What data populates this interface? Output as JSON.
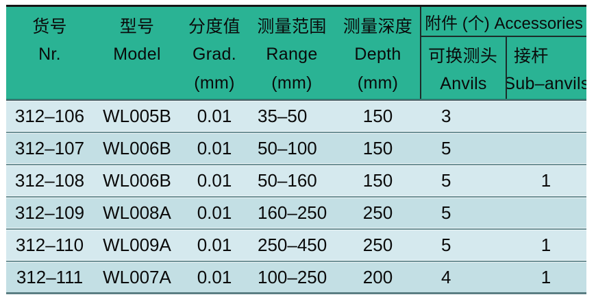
{
  "meta": {
    "description": "Catalog specification table for depth micrometers with Chinese/English bilingual headers"
  },
  "colors": {
    "header_bg": "#2ab394",
    "row_light": "#d5e9ee",
    "row_dark": "#c3dfe4",
    "separator": "#6e9196",
    "header_rule": "#1c2b29",
    "top_rule": "#151515",
    "bottom_rule": "#5b7e83",
    "text": "#0a0a0a"
  },
  "table": {
    "columns": [
      {
        "zh": "货号",
        "en": "Nr.",
        "unit": ""
      },
      {
        "zh": "型号",
        "en": "Model",
        "unit": ""
      },
      {
        "zh": "分度值",
        "en": "Grad.",
        "unit": "(mm)"
      },
      {
        "zh": "测量范围",
        "en": "Range",
        "unit": "(mm)"
      },
      {
        "zh": "测量深度",
        "en": "Depth",
        "unit": "(mm)"
      }
    ],
    "accessories_group": {
      "title": "附件 (个) Accessories",
      "sub_columns": [
        {
          "zh": "可换测头",
          "en": "Anvils"
        },
        {
          "zh": "接杆",
          "en": "Sub–anvils"
        }
      ]
    },
    "rows": [
      [
        "312–106",
        "WL005B",
        "0.01",
        "35–50",
        "150",
        "3",
        ""
      ],
      [
        "312–107",
        "WL006B",
        "0.01",
        "50–100",
        "150",
        "5",
        ""
      ],
      [
        "312–108",
        "WL006B",
        "0.01",
        "50–160",
        "150",
        "5",
        "1"
      ],
      [
        "312–109",
        "WL008A",
        "0.01",
        "160–250",
        "250",
        "5",
        ""
      ],
      [
        "312–110",
        "WL009A",
        "0.01",
        "250–450",
        "250",
        "5",
        "1"
      ],
      [
        "312–111",
        "WL007A",
        "0.01",
        "100–250",
        "200",
        "4",
        "1"
      ]
    ]
  }
}
